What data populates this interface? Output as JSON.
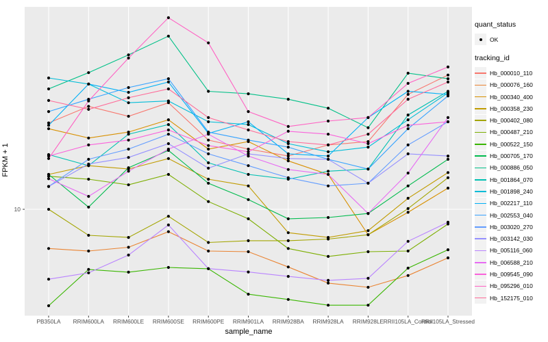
{
  "style": {
    "panel_bg": "#EBEBEB",
    "grid_color": "#FFFFFF",
    "axis_text_color": "#4D4D4D",
    "tick_color": "#333333",
    "point_color": "#000000",
    "legend_key_bg": "#F2F2F2"
  },
  "axes": {
    "y_label": "FPKM + 1",
    "x_label": "sample_name",
    "y_tick_labels": [
      "10"
    ]
  },
  "legend": {
    "groups": [
      {
        "title": "quant_status",
        "items": [
          {
            "label": "OK",
            "type": "point",
            "color": "#000000"
          }
        ]
      },
      {
        "title": "tracking_id",
        "items": [
          {
            "label": "Hb_000010_110",
            "type": "line",
            "color": "#F8766D"
          },
          {
            "label": "Hb_000076_160",
            "type": "line",
            "color": "#EA8331"
          },
          {
            "label": "Hb_000340_400",
            "type": "line",
            "color": "#D89000"
          },
          {
            "label": "Hb_000358_230",
            "type": "line",
            "color": "#C09B00"
          },
          {
            "label": "Hb_000402_080",
            "type": "line",
            "color": "#A3A500"
          },
          {
            "label": "Hb_000487_210",
            "type": "line",
            "color": "#7CAE00"
          },
          {
            "label": "Hb_000522_150",
            "type": "line",
            "color": "#39B600"
          },
          {
            "label": "Hb_000705_170",
            "type": "line",
            "color": "#00BB4E"
          },
          {
            "label": "Hb_000886_050",
            "type": "line",
            "color": "#00C087"
          },
          {
            "label": "Hb_001864_070",
            "type": "line",
            "color": "#00C0B2"
          },
          {
            "label": "Hb_001898_240",
            "type": "line",
            "color": "#00BCD8"
          },
          {
            "label": "Hb_002217_110",
            "type": "line",
            "color": "#00B0F6"
          },
          {
            "label": "Hb_002553_040",
            "type": "line",
            "color": "#35A2FF"
          },
          {
            "label": "Hb_003020_270",
            "type": "line",
            "color": "#619CFF"
          },
          {
            "label": "Hb_003142_030",
            "type": "line",
            "color": "#9590FF"
          },
          {
            "label": "Hb_005116_060",
            "type": "line",
            "color": "#B983FF"
          },
          {
            "label": "Hb_006588_210",
            "type": "line",
            "color": "#E76BF3"
          },
          {
            "label": "Hb_009545_090",
            "type": "line",
            "color": "#FA62DB"
          },
          {
            "label": "Hb_095296_010",
            "type": "line",
            "color": "#FF61C3"
          },
          {
            "label": "Hb_152175_010",
            "type": "line",
            "color": "#FF6A98"
          }
        ]
      }
    ]
  },
  "chart_data": {
    "type": "line",
    "title": "",
    "xlabel": "sample_name",
    "ylabel": "FPKM + 1",
    "y_scale": "log10",
    "y_ticks": [
      10
    ],
    "grid": true,
    "legend_position": "right",
    "x_categories": [
      "PB350LA",
      "RRIM600LA",
      "RRIM600LE",
      "RRIM600SE",
      "RRIM600PE",
      "RRIM901LA",
      "RRIM928BA",
      "RRIM928LA",
      "RRIM928LE",
      "RRII105LA_Control",
      "RRII105LA_Stressed"
    ],
    "series": [
      {
        "name": "Hb_000010_110",
        "color": "#F8766D",
        "values": [
          32.0,
          40.0,
          35.0,
          42.0,
          25.4,
          22.5,
          20.5,
          23.8,
          24.9,
          47.0,
          61.0
        ]
      },
      {
        "name": "Hb_000076_160",
        "color": "#EA8331",
        "values": [
          5.9,
          5.7,
          6.0,
          7.4,
          5.7,
          5.65,
          4.6,
          3.7,
          3.5,
          4.1,
          5.2
        ]
      },
      {
        "name": "Hb_000340_400",
        "color": "#D89000",
        "values": [
          29.6,
          26.1,
          28.3,
          33.4,
          22.5,
          24.9,
          19.2,
          16.0,
          7.1,
          9.6,
          13.3
        ]
      },
      {
        "name": "Hb_000358_230",
        "color": "#C09B00",
        "values": [
          16.0,
          18.0,
          17.2,
          19.8,
          15.0,
          13.7,
          7.3,
          6.85,
          7.5,
          11.6,
          16.4
        ]
      },
      {
        "name": "Hb_000402_080",
        "color": "#A3A500",
        "values": [
          10.0,
          7.05,
          6.85,
          9.1,
          6.4,
          6.55,
          6.55,
          6.7,
          7.1,
          10.1,
          15.3
        ]
      },
      {
        "name": "Hb_000487_210",
        "color": "#7CAE00",
        "values": [
          15.6,
          15.0,
          13.9,
          16.0,
          11.1,
          8.8,
          5.9,
          5.3,
          5.65,
          5.7,
          8.2
        ]
      },
      {
        "name": "Hb_000522_150",
        "color": "#39B600",
        "values": [
          2.73,
          4.45,
          4.29,
          4.57,
          4.49,
          3.19,
          2.97,
          2.75,
          2.75,
          4.53,
          5.8
        ]
      },
      {
        "name": "Hb_000705_170",
        "color": "#00BB4E",
        "values": [
          16.0,
          10.3,
          17.5,
          22.1,
          14.2,
          11.4,
          8.8,
          8.95,
          9.45,
          13.7,
          19.6
        ]
      },
      {
        "name": "Hb_000886_050",
        "color": "#00C087",
        "values": [
          50.6,
          63.0,
          80.0,
          103.0,
          49.0,
          47.4,
          44.0,
          39.0,
          30.0,
          62.5,
          58.0
        ]
      },
      {
        "name": "Hb_001864_070",
        "color": "#00C0B2",
        "values": [
          20.9,
          18.0,
          27.5,
          31.3,
          18.7,
          16.0,
          15.0,
          16.7,
          17.2,
          35.6,
          49.0
        ]
      },
      {
        "name": "Hb_001898_240",
        "color": "#00BCD8",
        "values": [
          58.6,
          54.0,
          42.0,
          43.0,
          32.5,
          31.3,
          24.2,
          21.7,
          23.1,
          33.4,
          48.0
        ]
      },
      {
        "name": "Hb_002217_110",
        "color": "#00B0F6",
        "values": [
          31.0,
          54.0,
          48.3,
          55.5,
          27.8,
          32.5,
          21.1,
          20.5,
          34.4,
          49.0,
          47.0
        ]
      },
      {
        "name": "Hb_002553_040",
        "color": "#35A2FF",
        "values": [
          37.3,
          44.0,
          51.5,
          58.0,
          28.3,
          25.4,
          23.1,
          19.6,
          17.2,
          29.6,
          46.0
        ]
      },
      {
        "name": "Hb_003020_270",
        "color": "#619CFF",
        "values": [
          13.6,
          19.6,
          22.5,
          27.5,
          21.1,
          18.0,
          15.3,
          13.7,
          14.2,
          23.8,
          32.5
        ]
      },
      {
        "name": "Hb_003142_030",
        "color": "#9590FF",
        "values": [
          13.6,
          18.4,
          20.1,
          24.2,
          17.4,
          21.1,
          19.8,
          19.6,
          14.2,
          21.1,
          20.5
        ]
      },
      {
        "name": "Hb_005116_060",
        "color": "#B983FF",
        "values": [
          3.9,
          4.25,
          5.4,
          8.1,
          4.5,
          4.3,
          4.05,
          3.84,
          3.95,
          6.5,
          8.4
        ]
      },
      {
        "name": "Hb_006588_210",
        "color": "#E76BF3",
        "values": [
          15.1,
          11.9,
          16.7,
          22.5,
          27.5,
          20.5,
          17.1,
          16.0,
          9.45,
          16.3,
          34.4
        ]
      },
      {
        "name": "Hb_009545_090",
        "color": "#FA62DB",
        "values": [
          20.5,
          23.8,
          25.4,
          29.1,
          23.6,
          21.7,
          28.6,
          27.5,
          24.2,
          31.0,
          32.5
        ]
      },
      {
        "name": "Hb_095296_010",
        "color": "#FF61C3",
        "values": [
          19.8,
          43.0,
          76.6,
          132.0,
          94.0,
          37.3,
          30.5,
          32.8,
          34.4,
          54.5,
          68.0
        ]
      },
      {
        "name": "Hb_152175_010",
        "color": "#FF6A98",
        "values": [
          43.3,
          38.4,
          44.9,
          50.6,
          34.4,
          29.1,
          24.9,
          23.8,
          27.5,
          44.0,
          55.5
        ]
      }
    ]
  }
}
